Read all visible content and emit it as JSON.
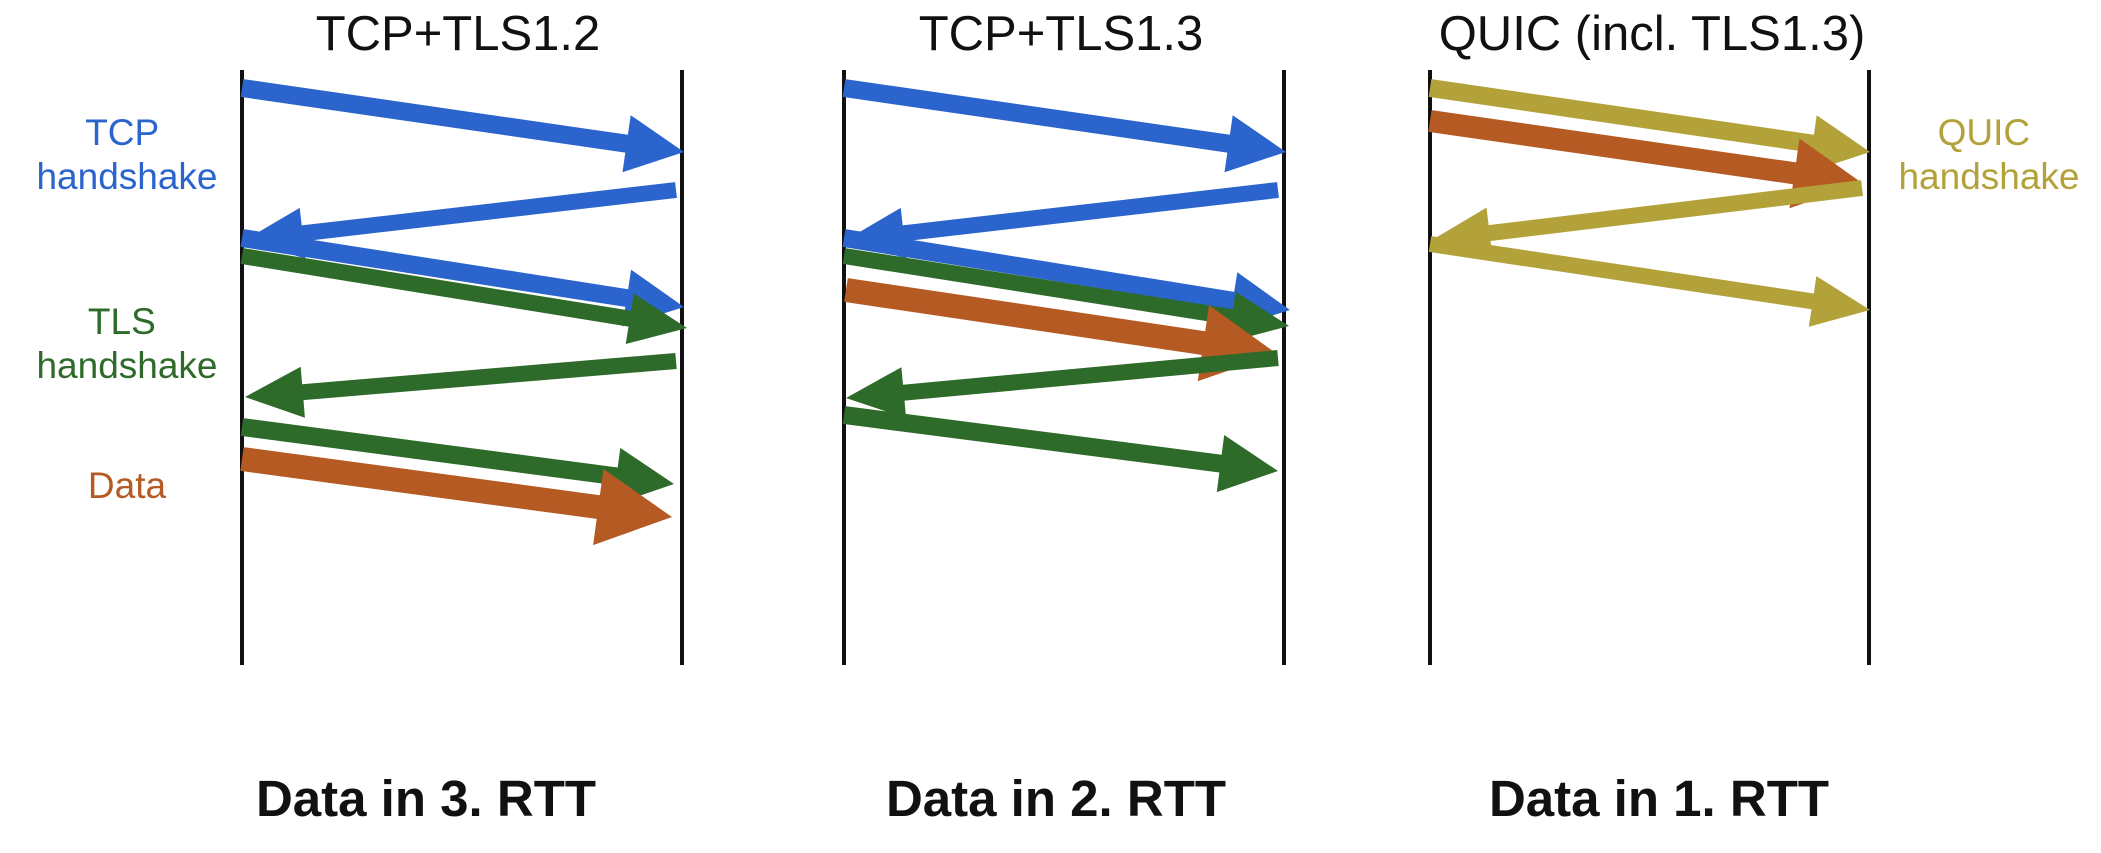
{
  "colors": {
    "tcp": "#2a64cc",
    "tls": "#2e6b2a",
    "data": "#b65a23",
    "quic": "#b3a13a",
    "line": "#111111",
    "text": "#111111"
  },
  "panels": [
    {
      "title": "TCP+TLS1.2",
      "caption": "Data in 3. RTT",
      "arrows": [
        {
          "name": "tcp-syn",
          "kind": "tcp",
          "direction": "client-to-server"
        },
        {
          "name": "tcp-syn-ack",
          "kind": "tcp",
          "direction": "server-to-client"
        },
        {
          "name": "tcp-ack",
          "kind": "tcp",
          "direction": "client-to-server"
        },
        {
          "name": "tls-client-hello",
          "kind": "tls",
          "direction": "client-to-server"
        },
        {
          "name": "tls-server-hello",
          "kind": "tls",
          "direction": "server-to-client"
        },
        {
          "name": "tls-finished",
          "kind": "tls",
          "direction": "client-to-server"
        },
        {
          "name": "data",
          "kind": "data",
          "direction": "client-to-server"
        }
      ]
    },
    {
      "title": "TCP+TLS1.3",
      "caption": "Data in 2. RTT",
      "arrows": [
        {
          "name": "tcp-syn",
          "kind": "tcp",
          "direction": "client-to-server"
        },
        {
          "name": "tcp-syn-ack",
          "kind": "tcp",
          "direction": "server-to-client"
        },
        {
          "name": "tcp-ack",
          "kind": "tcp",
          "direction": "client-to-server"
        },
        {
          "name": "tls-client-hello",
          "kind": "tls",
          "direction": "client-to-server"
        },
        {
          "name": "data",
          "kind": "data",
          "direction": "client-to-server"
        },
        {
          "name": "tls-server-hello",
          "kind": "tls",
          "direction": "server-to-client"
        },
        {
          "name": "tls-finished",
          "kind": "tls",
          "direction": "client-to-server"
        }
      ]
    },
    {
      "title": "QUIC (incl. TLS1.3)",
      "caption": "Data in 1. RTT",
      "arrows": [
        {
          "name": "quic-initial",
          "kind": "quic",
          "direction": "client-to-server"
        },
        {
          "name": "data",
          "kind": "data",
          "direction": "client-to-server"
        },
        {
          "name": "quic-server-hello",
          "kind": "quic",
          "direction": "server-to-client"
        },
        {
          "name": "quic-finished",
          "kind": "quic",
          "direction": "client-to-server"
        }
      ]
    }
  ],
  "legend": {
    "tcp_line1": "TCP",
    "tcp_line2": "handshake",
    "tls_line1": "TLS",
    "tls_line2": "handshake",
    "data": "Data",
    "quic_line1": "QUIC",
    "quic_line2": "handshake"
  }
}
